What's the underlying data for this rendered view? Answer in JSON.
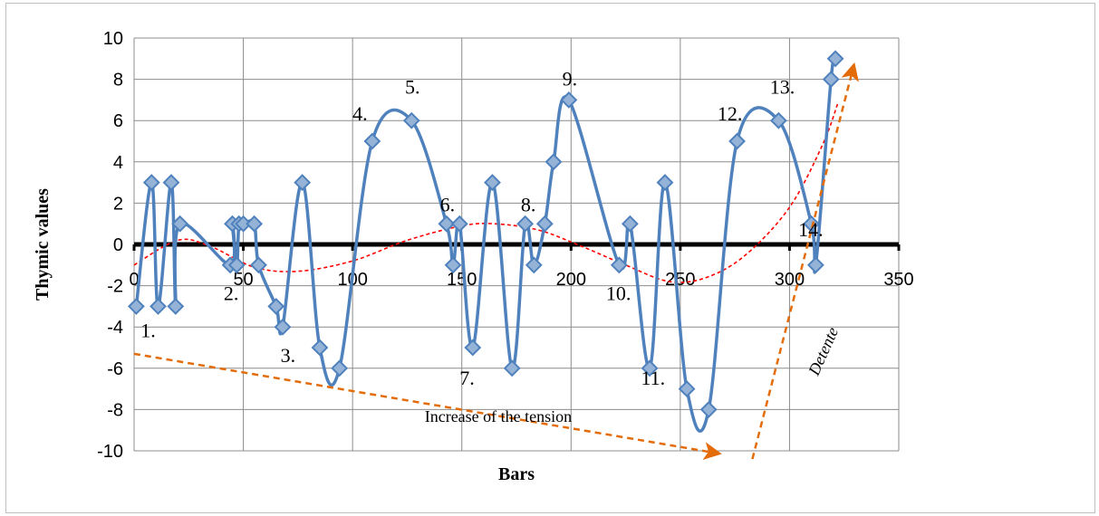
{
  "chart_data": {
    "type": "line",
    "xlabel": "Bars",
    "ylabel": "Thymic values",
    "xlim": [
      0,
      350
    ],
    "ylim": [
      -10,
      10
    ],
    "x_ticks": [
      "0",
      "50",
      "100",
      "150",
      "200",
      "250",
      "300",
      "350"
    ],
    "y_ticks": [
      "10",
      "8",
      "6",
      "4",
      "2",
      "0",
      "-2",
      "-4",
      "-6",
      "-8",
      "-10"
    ],
    "grid": true,
    "series": [
      {
        "color": "#4f81bd",
        "marker": "diamond",
        "smooth": true,
        "points": [
          [
            1,
            -3
          ],
          [
            8,
            3
          ],
          [
            11,
            -3
          ],
          [
            17,
            3
          ],
          [
            19,
            -3
          ],
          [
            21,
            1
          ],
          [
            44,
            -1
          ],
          [
            45,
            1
          ],
          [
            47,
            -1
          ],
          [
            48,
            1
          ],
          [
            50,
            1
          ],
          [
            55,
            1
          ],
          [
            57,
            -1
          ],
          [
            65,
            -3
          ],
          [
            68,
            -4
          ],
          [
            77,
            3
          ],
          [
            85,
            -5
          ],
          [
            94,
            -6
          ],
          [
            109,
            5
          ],
          [
            127,
            6
          ],
          [
            143,
            1
          ],
          [
            146,
            -1
          ],
          [
            149,
            1
          ],
          [
            155,
            -5
          ],
          [
            164,
            3
          ],
          [
            173,
            -6
          ],
          [
            179,
            1
          ],
          [
            183,
            -1
          ],
          [
            188,
            1
          ],
          [
            192,
            4
          ],
          [
            199,
            7
          ],
          [
            222,
            -1
          ],
          [
            227,
            1
          ],
          [
            236,
            -6
          ],
          [
            243,
            3
          ],
          [
            253,
            -7
          ],
          [
            263,
            -8
          ],
          [
            276,
            5
          ],
          [
            295,
            6
          ],
          [
            310,
            1
          ],
          [
            312,
            -1
          ],
          [
            319,
            8
          ],
          [
            321,
            9
          ]
        ]
      },
      {
        "color": "#ff0000",
        "dashed": true,
        "points": [
          [
            0,
            -1
          ],
          [
            20,
            0.2
          ],
          [
            35,
            -0.1
          ],
          [
            55,
            -1.1
          ],
          [
            75,
            -1.3
          ],
          [
            100,
            -0.8
          ],
          [
            125,
            0.2
          ],
          [
            150,
            0.9
          ],
          [
            165,
            1.0
          ],
          [
            185,
            0.7
          ],
          [
            205,
            -0.1
          ],
          [
            225,
            -1.0
          ],
          [
            245,
            -1.8
          ],
          [
            262,
            -1.6
          ],
          [
            280,
            -0.5
          ],
          [
            300,
            1.8
          ],
          [
            315,
            4.8
          ],
          [
            322,
            6.8
          ]
        ]
      }
    ],
    "annotations": [
      {
        "text": "1.",
        "x": 3,
        "y": -4.5,
        "style": "ann"
      },
      {
        "text": "2.",
        "x": 41,
        "y": -2.7,
        "style": "ann"
      },
      {
        "text": "3.",
        "x": 67,
        "y": -5.7,
        "style": "ann"
      },
      {
        "text": "4.",
        "x": 100,
        "y": 6.0,
        "style": "ann"
      },
      {
        "text": "5.",
        "x": 124,
        "y": 7.3,
        "style": "ann"
      },
      {
        "text": "6.",
        "x": 140,
        "y": 1.6,
        "style": "ann"
      },
      {
        "text": "7.",
        "x": 149,
        "y": -6.8,
        "style": "ann"
      },
      {
        "text": "8.",
        "x": 177,
        "y": 1.6,
        "style": "ann"
      },
      {
        "text": "9.",
        "x": 196,
        "y": 7.7,
        "style": "ann"
      },
      {
        "text": "10.",
        "x": 216,
        "y": -2.7,
        "style": "ann"
      },
      {
        "text": "11.",
        "x": 232,
        "y": -6.8,
        "style": "ann"
      },
      {
        "text": "12.",
        "x": 267,
        "y": 6.0,
        "style": "ann"
      },
      {
        "text": "13.",
        "x": 291,
        "y": 7.3,
        "style": "ann"
      },
      {
        "text": "14.",
        "x": 304,
        "y": 0.4,
        "style": "ann"
      },
      {
        "text": "Increase of the tension",
        "x": 133,
        "y": -8.6,
        "style": "small"
      }
    ],
    "arrows": [
      {
        "color": "#e36c09",
        "from": [
          0,
          -5.3
        ],
        "to": [
          266,
          -10.1
        ]
      },
      {
        "color": "#e36c09",
        "from": [
          283,
          -10.4
        ],
        "to": [
          329,
          8.5
        ]
      }
    ],
    "rotated_label": {
      "text": "Detente",
      "x": 313,
      "y": -6.4
    }
  }
}
